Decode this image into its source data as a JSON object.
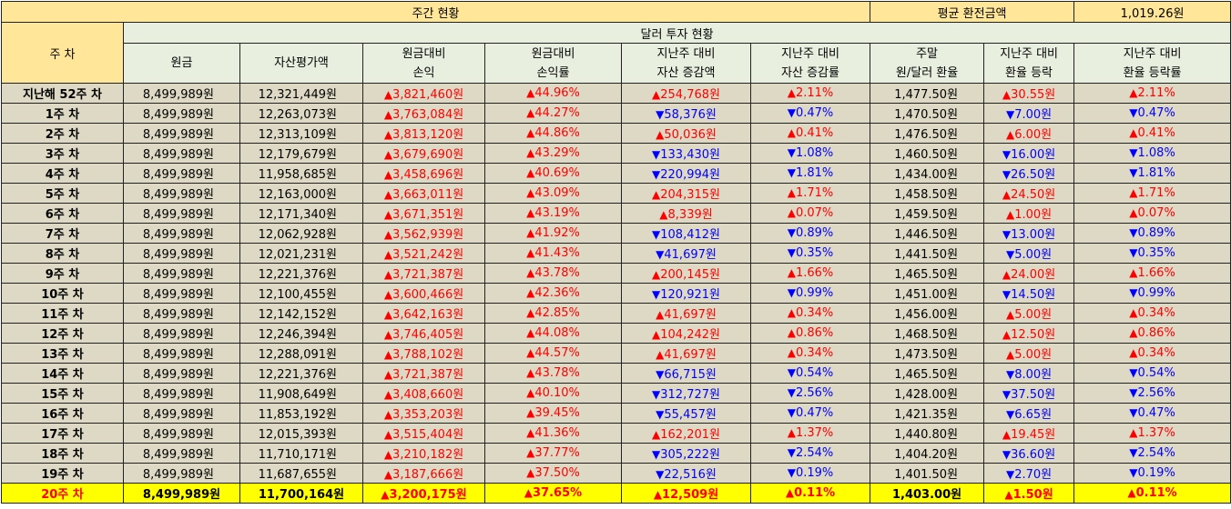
{
  "header": {
    "weekly_status": "주간 현황",
    "avg_exchange_label": "평균 환전금액",
    "avg_exchange_value": "1,019.26원",
    "week_col": "주 차",
    "dollar_status": "달러 투자 현황",
    "columns": [
      {
        "line1": "원금",
        "line2": ""
      },
      {
        "line1": "자산평가액",
        "line2": ""
      },
      {
        "line1": "원금대비",
        "line2": "손익"
      },
      {
        "line1": "원금대비",
        "line2": "손익률"
      },
      {
        "line1": "지난주 대비",
        "line2": "자산 증감액"
      },
      {
        "line1": "지난주 대비",
        "line2": "자산 증감률"
      },
      {
        "line1": "주말",
        "line2": "원/달러 환율"
      },
      {
        "line1": "지난주 대비",
        "line2": "환율 등락"
      },
      {
        "line1": "지난주 대비",
        "line2": "환율 등락률"
      }
    ]
  },
  "arrows": {
    "up": "▲",
    "down": "▼"
  },
  "colors": {
    "up": "#ff0000",
    "down": "#0000ff",
    "header_bg": "#ffe699",
    "row_bg": "#ddd9c4",
    "current_bg": "#ffff00"
  },
  "rows": [
    {
      "week": "지난해 52주 차",
      "principal": "8,499,989원",
      "valuation": "12,321,449원",
      "pl_dir": "up",
      "pl": "3,821,460원",
      "plr_dir": "up",
      "plr": "44.96%",
      "chg_dir": "up",
      "chg": "254,768원",
      "chgr_dir": "up",
      "chgr": "2.11%",
      "fx": "1,477.50원",
      "fxc_dir": "up",
      "fxc": "30.55원",
      "fxr_dir": "up",
      "fxr": "2.11%"
    },
    {
      "week": "1주 차",
      "principal": "8,499,989원",
      "valuation": "12,263,073원",
      "pl_dir": "up",
      "pl": "3,763,084원",
      "plr_dir": "up",
      "plr": "44.27%",
      "chg_dir": "down",
      "chg": "58,376원",
      "chgr_dir": "down",
      "chgr": "0.47%",
      "fx": "1,470.50원",
      "fxc_dir": "down",
      "fxc": "7.00원",
      "fxr_dir": "down",
      "fxr": "0.47%"
    },
    {
      "week": "2주 차",
      "principal": "8,499,989원",
      "valuation": "12,313,109원",
      "pl_dir": "up",
      "pl": "3,813,120원",
      "plr_dir": "up",
      "plr": "44.86%",
      "chg_dir": "up",
      "chg": "50,036원",
      "chgr_dir": "up",
      "chgr": "0.41%",
      "fx": "1,476.50원",
      "fxc_dir": "up",
      "fxc": "6.00원",
      "fxr_dir": "up",
      "fxr": "0.41%"
    },
    {
      "week": "3주 차",
      "principal": "8,499,989원",
      "valuation": "12,179,679원",
      "pl_dir": "up",
      "pl": "3,679,690원",
      "plr_dir": "up",
      "plr": "43.29%",
      "chg_dir": "down",
      "chg": "133,430원",
      "chgr_dir": "down",
      "chgr": "1.08%",
      "fx": "1,460.50원",
      "fxc_dir": "down",
      "fxc": "16.00원",
      "fxr_dir": "down",
      "fxr": "1.08%"
    },
    {
      "week": "4주 차",
      "principal": "8,499,989원",
      "valuation": "11,958,685원",
      "pl_dir": "up",
      "pl": "3,458,696원",
      "plr_dir": "up",
      "plr": "40.69%",
      "chg_dir": "down",
      "chg": "220,994원",
      "chgr_dir": "down",
      "chgr": "1.81%",
      "fx": "1,434.00원",
      "fxc_dir": "down",
      "fxc": "26.50원",
      "fxr_dir": "down",
      "fxr": "1.81%"
    },
    {
      "week": "5주 차",
      "principal": "8,499,989원",
      "valuation": "12,163,000원",
      "pl_dir": "up",
      "pl": "3,663,011원",
      "plr_dir": "up",
      "plr": "43.09%",
      "chg_dir": "up",
      "chg": "204,315원",
      "chgr_dir": "up",
      "chgr": "1.71%",
      "fx": "1,458.50원",
      "fxc_dir": "up",
      "fxc": "24.50원",
      "fxr_dir": "up",
      "fxr": "1.71%"
    },
    {
      "week": "6주 차",
      "principal": "8,499,989원",
      "valuation": "12,171,340원",
      "pl_dir": "up",
      "pl": "3,671,351원",
      "plr_dir": "up",
      "plr": "43.19%",
      "chg_dir": "up",
      "chg": "8,339원",
      "chgr_dir": "up",
      "chgr": "0.07%",
      "fx": "1,459.50원",
      "fxc_dir": "up",
      "fxc": "1.00원",
      "fxr_dir": "up",
      "fxr": "0.07%"
    },
    {
      "week": "7주 차",
      "principal": "8,499,989원",
      "valuation": "12,062,928원",
      "pl_dir": "up",
      "pl": "3,562,939원",
      "plr_dir": "up",
      "plr": "41.92%",
      "chg_dir": "down",
      "chg": "108,412원",
      "chgr_dir": "down",
      "chgr": "0.89%",
      "fx": "1,446.50원",
      "fxc_dir": "down",
      "fxc": "13.00원",
      "fxr_dir": "down",
      "fxr": "0.89%"
    },
    {
      "week": "8주 차",
      "principal": "8,499,989원",
      "valuation": "12,021,231원",
      "pl_dir": "up",
      "pl": "3,521,242원",
      "plr_dir": "up",
      "plr": "41.43%",
      "chg_dir": "down",
      "chg": "41,697원",
      "chgr_dir": "down",
      "chgr": "0.35%",
      "fx": "1,441.50원",
      "fxc_dir": "down",
      "fxc": "5.00원",
      "fxr_dir": "down",
      "fxr": "0.35%"
    },
    {
      "week": "9주 차",
      "principal": "8,499,989원",
      "valuation": "12,221,376원",
      "pl_dir": "up",
      "pl": "3,721,387원",
      "plr_dir": "up",
      "plr": "43.78%",
      "chg_dir": "up",
      "chg": "200,145원",
      "chgr_dir": "up",
      "chgr": "1.66%",
      "fx": "1,465.50원",
      "fxc_dir": "up",
      "fxc": "24.00원",
      "fxr_dir": "up",
      "fxr": "1.66%"
    },
    {
      "week": "10주 차",
      "principal": "8,499,989원",
      "valuation": "12,100,455원",
      "pl_dir": "up",
      "pl": "3,600,466원",
      "plr_dir": "up",
      "plr": "42.36%",
      "chg_dir": "down",
      "chg": "120,921원",
      "chgr_dir": "down",
      "chgr": "0.99%",
      "fx": "1,451.00원",
      "fxc_dir": "down",
      "fxc": "14.50원",
      "fxr_dir": "down",
      "fxr": "0.99%"
    },
    {
      "week": "11주 차",
      "principal": "8,499,989원",
      "valuation": "12,142,152원",
      "pl_dir": "up",
      "pl": "3,642,163원",
      "plr_dir": "up",
      "plr": "42.85%",
      "chg_dir": "up",
      "chg": "41,697원",
      "chgr_dir": "up",
      "chgr": "0.34%",
      "fx": "1,456.00원",
      "fxc_dir": "up",
      "fxc": "5.00원",
      "fxr_dir": "up",
      "fxr": "0.34%"
    },
    {
      "week": "12주 차",
      "principal": "8,499,989원",
      "valuation": "12,246,394원",
      "pl_dir": "up",
      "pl": "3,746,405원",
      "plr_dir": "up",
      "plr": "44.08%",
      "chg_dir": "up",
      "chg": "104,242원",
      "chgr_dir": "up",
      "chgr": "0.86%",
      "fx": "1,468.50원",
      "fxc_dir": "up",
      "fxc": "12.50원",
      "fxr_dir": "up",
      "fxr": "0.86%"
    },
    {
      "week": "13주 차",
      "principal": "8,499,989원",
      "valuation": "12,288,091원",
      "pl_dir": "up",
      "pl": "3,788,102원",
      "plr_dir": "up",
      "plr": "44.57%",
      "chg_dir": "up",
      "chg": "41,697원",
      "chgr_dir": "up",
      "chgr": "0.34%",
      "fx": "1,473.50원",
      "fxc_dir": "up",
      "fxc": "5.00원",
      "fxr_dir": "up",
      "fxr": "0.34%"
    },
    {
      "week": "14주 차",
      "principal": "8,499,989원",
      "valuation": "12,221,376원",
      "pl_dir": "up",
      "pl": "3,721,387원",
      "plr_dir": "up",
      "plr": "43.78%",
      "chg_dir": "down",
      "chg": "66,715원",
      "chgr_dir": "down",
      "chgr": "0.54%",
      "fx": "1,465.50원",
      "fxc_dir": "down",
      "fxc": "8.00원",
      "fxr_dir": "down",
      "fxr": "0.54%"
    },
    {
      "week": "15주 차",
      "principal": "8,499,989원",
      "valuation": "11,908,649원",
      "pl_dir": "up",
      "pl": "3,408,660원",
      "plr_dir": "up",
      "plr": "40.10%",
      "chg_dir": "down",
      "chg": "312,727원",
      "chgr_dir": "down",
      "chgr": "2.56%",
      "fx": "1,428.00원",
      "fxc_dir": "down",
      "fxc": "37.50원",
      "fxr_dir": "down",
      "fxr": "2.56%"
    },
    {
      "week": "16주 차",
      "principal": "8,499,989원",
      "valuation": "11,853,192원",
      "pl_dir": "up",
      "pl": "3,353,203원",
      "plr_dir": "up",
      "plr": "39.45%",
      "chg_dir": "down",
      "chg": "55,457원",
      "chgr_dir": "down",
      "chgr": "0.47%",
      "fx": "1,421.35원",
      "fxc_dir": "down",
      "fxc": "6.65원",
      "fxr_dir": "down",
      "fxr": "0.47%"
    },
    {
      "week": "17주 차",
      "principal": "8,499,989원",
      "valuation": "12,015,393원",
      "pl_dir": "up",
      "pl": "3,515,404원",
      "plr_dir": "up",
      "plr": "41.36%",
      "chg_dir": "up",
      "chg": "162,201원",
      "chgr_dir": "up",
      "chgr": "1.37%",
      "fx": "1,440.80원",
      "fxc_dir": "up",
      "fxc": "19.45원",
      "fxr_dir": "up",
      "fxr": "1.37%"
    },
    {
      "week": "18주 차",
      "principal": "8,499,989원",
      "valuation": "11,710,171원",
      "pl_dir": "up",
      "pl": "3,210,182원",
      "plr_dir": "up",
      "plr": "37.77%",
      "chg_dir": "down",
      "chg": "305,222원",
      "chgr_dir": "down",
      "chgr": "2.54%",
      "fx": "1,404.20원",
      "fxc_dir": "down",
      "fxc": "36.60원",
      "fxr_dir": "down",
      "fxr": "2.54%"
    },
    {
      "week": "19주 차",
      "principal": "8,499,989원",
      "valuation": "11,687,655원",
      "pl_dir": "up",
      "pl": "3,187,666원",
      "plr_dir": "up",
      "plr": "37.50%",
      "chg_dir": "down",
      "chg": "22,516원",
      "chgr_dir": "down",
      "chgr": "0.19%",
      "fx": "1,401.50원",
      "fxc_dir": "down",
      "fxc": "2.70원",
      "fxr_dir": "down",
      "fxr": "0.19%"
    },
    {
      "week": "20주 차",
      "principal": "8,499,989원",
      "valuation": "11,700,164원",
      "pl_dir": "up",
      "pl": "3,200,175원",
      "plr_dir": "up",
      "plr": "37.65%",
      "chg_dir": "up",
      "chg": "12,509원",
      "chgr_dir": "up",
      "chgr": "0.11%",
      "fx": "1,403.00원",
      "fxc_dir": "up",
      "fxc": "1.50원",
      "fxr_dir": "up",
      "fxr": "0.11%",
      "current": true
    }
  ]
}
